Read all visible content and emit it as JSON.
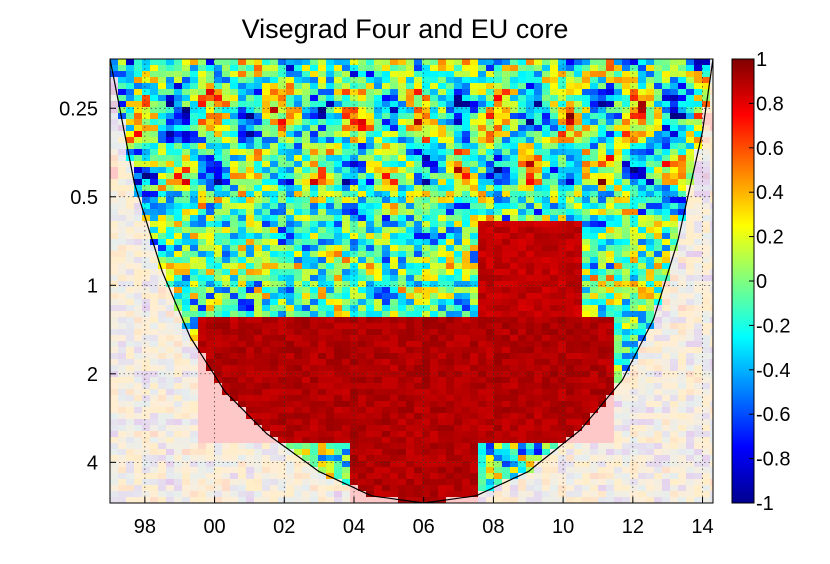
{
  "chart_data": {
    "type": "heatmap",
    "title": "Visegrad Four and EU core",
    "xlabel": "",
    "ylabel": "",
    "x_tick_labels": [
      "98",
      "00",
      "02",
      "04",
      "06",
      "08",
      "10",
      "12",
      "14"
    ],
    "x_tick_years": [
      1998,
      2000,
      2002,
      2004,
      2006,
      2008,
      2010,
      2012,
      2014
    ],
    "x_range": [
      1997.0,
      2014.3
    ],
    "y_tick_labels": [
      "0.25",
      "0.5",
      "1",
      "2",
      "4"
    ],
    "y_tick_values": [
      0.25,
      0.5,
      1,
      2,
      4
    ],
    "y_range": [
      0.17,
      5.5
    ],
    "y_scale": "log2",
    "y_reversed": true,
    "grid": true,
    "colorbar": {
      "range": [
        -1,
        1
      ],
      "tick_labels": [
        "1",
        "0.8",
        "0.6",
        "0.4",
        "0.2",
        "0",
        "-0.2",
        "-0.4",
        "-0.6",
        "-0.8",
        "-1"
      ],
      "tick_values": [
        1,
        0.8,
        0.6,
        0.4,
        0.2,
        0,
        -0.2,
        -0.4,
        -0.6,
        -0.8,
        -1
      ],
      "colormap": "jet",
      "placement": "right"
    },
    "cone_of_influence": true,
    "high_coherence_regions": [
      {
        "period": [
          1.3,
          3.5
        ],
        "years": [
          1999.5,
          2011.5
        ],
        "value": 0.95
      },
      {
        "period": [
          0.6,
          1.3
        ],
        "years": [
          2007.5,
          2010.5
        ],
        "value": 0.92
      },
      {
        "period": [
          3.5,
          5.5
        ],
        "years": [
          2004.0,
          2007.5
        ],
        "value": 0.95
      }
    ],
    "low_coherence_background": -0.1
  }
}
